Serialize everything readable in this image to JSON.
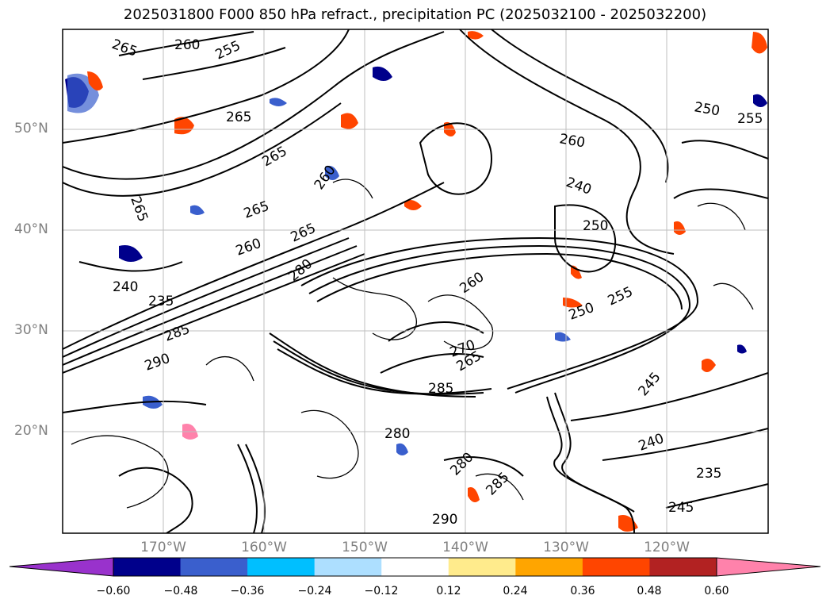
{
  "title": "2025031800 F000 850 hPa refract., precipitation PC (2025032100 - 2025032200)",
  "map": {
    "lat_labels": [
      "50°N",
      "40°N",
      "30°N",
      "20°N"
    ],
    "lon_labels": [
      "170°W",
      "160°W",
      "150°W",
      "140°W",
      "130°W",
      "120°W"
    ],
    "contour_labels": [
      "265",
      "260",
      "255",
      "265",
      "265",
      "260",
      "265",
      "265",
      "250",
      "255",
      "240",
      "235",
      "265",
      "260",
      "280",
      "285",
      "290",
      "280",
      "285",
      "270",
      "265",
      "260",
      "250",
      "245",
      "240",
      "235",
      "245",
      "280",
      "285",
      "290",
      "260",
      "255",
      "250",
      "240"
    ]
  },
  "colorbar": {
    "ticks": [
      "−0.60",
      "−0.48",
      "−0.36",
      "−0.24",
      "−0.12",
      "0.12",
      "0.24",
      "0.36",
      "0.48",
      "0.60"
    ],
    "colors": [
      "#9932CC",
      "#00008B",
      "#3A5FCD",
      "#00BFFF",
      "#ADDFFF",
      "#FFFFFF",
      "#FFEB8C",
      "#FFA500",
      "#FF4500",
      "#B22222",
      "#FF82AB"
    ],
    "under_color": "#9932CC",
    "over_color": "#FF82AB"
  },
  "legend": {
    "levels": [
      -0.6,
      -0.48,
      -0.36,
      -0.24,
      -0.12,
      0.12,
      0.24,
      0.36,
      0.48,
      0.6
    ]
  }
}
